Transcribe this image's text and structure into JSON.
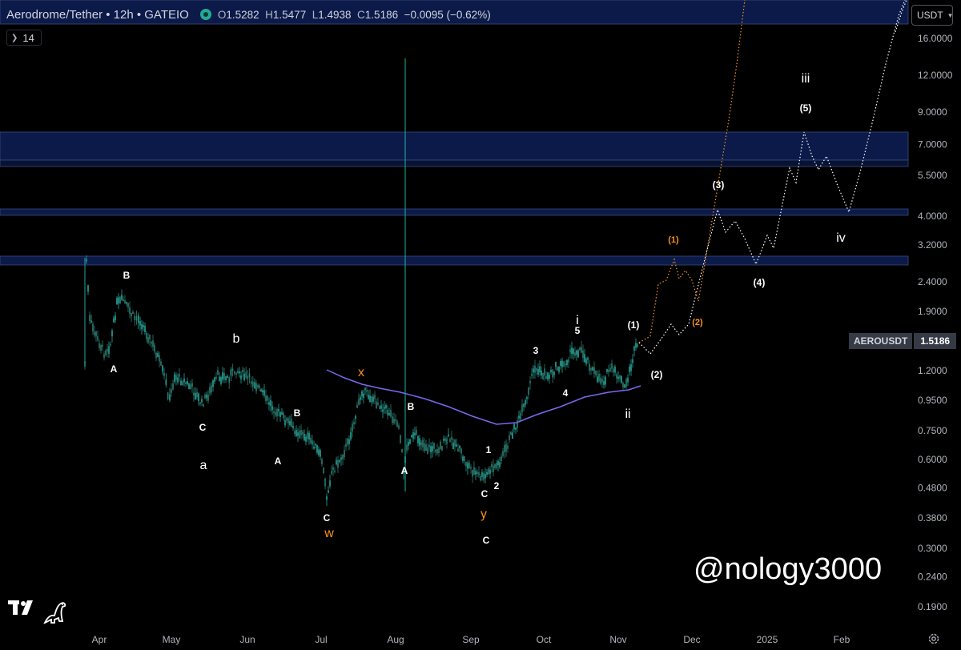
{
  "header": {
    "symbol_title": "Aerodrome/Tether • 12h • GATEIO",
    "status_dot_color": "#22ab94",
    "ohlc": {
      "o_label": "O",
      "o": "1.5282",
      "h_label": "H",
      "h": "1.5477",
      "l_label": "L",
      "l": "1.4938",
      "c_label": "C",
      "c": "1.5186",
      "change": "−0.0095 (−0.62%)"
    }
  },
  "indicator_chip": {
    "value": "14",
    "chevron_icon": "chevron-down-icon"
  },
  "currency": {
    "label": "USDT",
    "chevron_icon": "chevron-down-icon"
  },
  "price_axis": {
    "scale": "log",
    "ticks": [
      "16.0000",
      "12.0000",
      "9.0000",
      "7.0000",
      "5.5000",
      "4.0000",
      "3.2000",
      "2.4000",
      "1.9000",
      "1.2000",
      "0.9500",
      "0.7500",
      "0.6000",
      "0.4800",
      "0.3800",
      "0.3000",
      "0.2400",
      "0.1900"
    ]
  },
  "time_axis": {
    "ticks": [
      "Apr",
      "May",
      "Jun",
      "Jul",
      "Aug",
      "Sep",
      "Oct",
      "Nov",
      "Dec",
      "2025",
      "Jan",
      "Feb"
    ]
  },
  "last_price": {
    "symbol": "AEROUSDT",
    "value": "1.5186"
  },
  "wave_labels": {
    "white": [
      "B",
      "A",
      "b",
      "C",
      "a",
      "B",
      "A",
      "C",
      "B",
      "A",
      "1",
      "C",
      "2",
      "C",
      "3",
      "i",
      "5",
      "4",
      "(1)",
      "ii",
      "(2)",
      "(3)",
      "(4)",
      "(5)",
      "iii",
      "iv"
    ],
    "orange": [
      "x",
      "w",
      "y",
      "(1)",
      "(2)"
    ]
  },
  "colors": {
    "accent_orange": "#f7931a",
    "zone_blue": "#0c1a4a",
    "ma_purple": "#7b68ee",
    "candle_green": "#26a69a"
  },
  "watermark": "@nology3000",
  "icons": [
    "tradingview-logo-icon",
    "dino-icon",
    "gear-icon",
    "chevron-down-icon"
  ]
}
